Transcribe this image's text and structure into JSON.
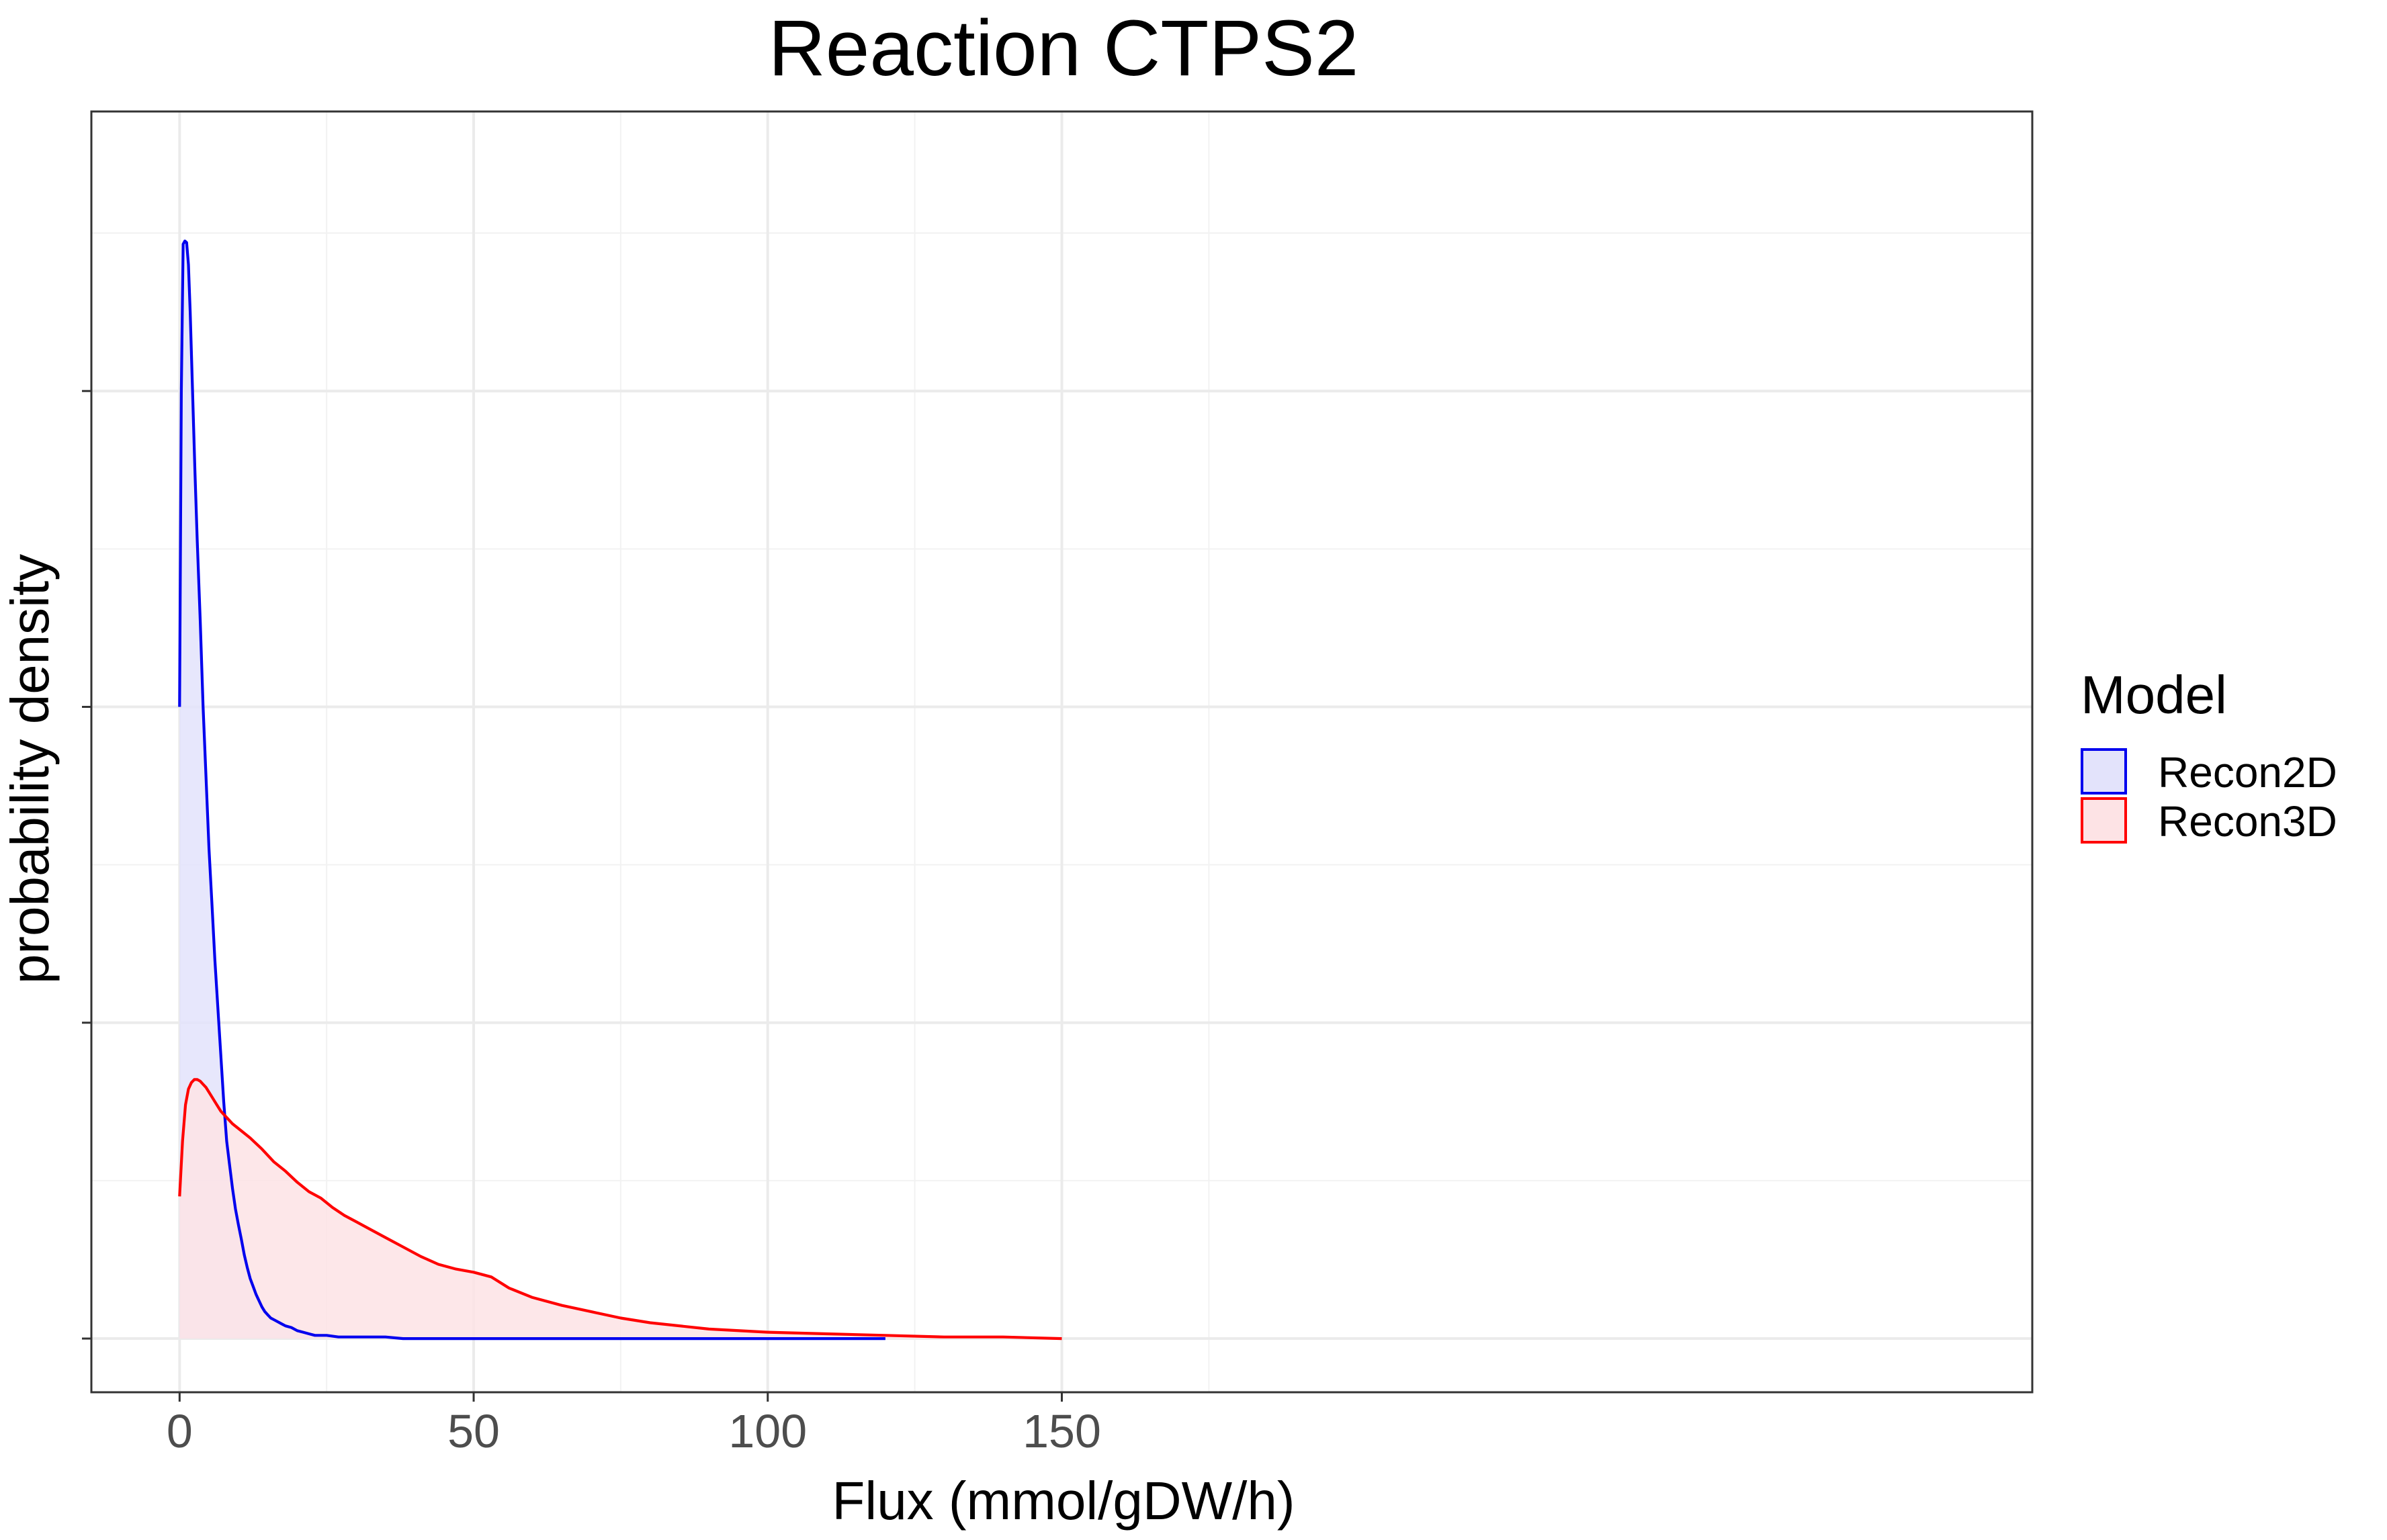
{
  "chart_data": {
    "type": "area",
    "title": "Reaction CTPS2",
    "xlabel": "Flux (mmol/gDW/h)",
    "ylabel": "probability density",
    "xlim": [
      -15,
      315
    ],
    "ylim": [
      -0.0034,
      0.0777
    ],
    "x_ticks": [
      0,
      50,
      100,
      150
    ],
    "x_tick_labels": [
      "0",
      "50",
      "100",
      "150"
    ],
    "y_ticks": [
      0,
      0.02,
      0.04,
      0.06
    ],
    "y_tick_labels": [
      "",
      "",
      "",
      ""
    ],
    "grid": true,
    "legend": {
      "title": "Model",
      "position": "right"
    },
    "series": [
      {
        "name": "Recon2D",
        "color": "#0000ee",
        "fill": "#e3e3fb",
        "x": [
          0,
          0.3,
          0.6,
          0.9,
          1.2,
          1.5,
          1.8,
          2.2,
          2.6,
          3.0,
          3.5,
          4.0,
          4.5,
          5.0,
          5.5,
          6.0,
          6.5,
          7.0,
          7.5,
          8.0,
          8.5,
          9.0,
          9.5,
          10.0,
          10.5,
          11.0,
          11.5,
          12.0,
          12.5,
          13.0,
          13.5,
          14.0,
          14.5,
          15.0,
          15.5,
          16.0,
          16.5,
          17.0,
          17.5,
          18.0,
          19.0,
          20.0,
          21.0,
          22.0,
          23.0,
          24.0,
          25.0,
          27.0,
          29.0,
          32.0,
          35.0,
          38.0,
          42.0,
          48.0,
          60.0,
          80.0,
          100.0,
          120.0
        ],
        "y": [
          0.04,
          0.06,
          0.0693,
          0.0695,
          0.0694,
          0.068,
          0.065,
          0.06,
          0.055,
          0.0505,
          0.0455,
          0.04,
          0.0355,
          0.031,
          0.0275,
          0.024,
          0.021,
          0.018,
          0.015,
          0.0125,
          0.011,
          0.0095,
          0.0082,
          0.0072,
          0.0063,
          0.0053,
          0.0045,
          0.0038,
          0.0033,
          0.0028,
          0.0024,
          0.002,
          0.0017,
          0.0015,
          0.0013,
          0.0012,
          0.0011,
          0.001,
          0.0009,
          0.0008,
          0.0007,
          0.0005,
          0.0004,
          0.0003,
          0.0002,
          0.0002,
          0.0002,
          0.0001,
          0.0001,
          0.0001,
          0.0001,
          0.0,
          0.0,
          0.0,
          0.0,
          0.0,
          0.0,
          0.0
        ]
      },
      {
        "name": "Recon3D",
        "color": "#ff0000",
        "fill": "#fde3e5",
        "x": [
          0,
          0.5,
          1.0,
          1.5,
          2.0,
          2.5,
          3.0,
          3.5,
          4.0,
          4.5,
          5.0,
          5.5,
          6.0,
          7.0,
          8.0,
          9.0,
          10.0,
          12.0,
          14.0,
          16.0,
          18.0,
          20.0,
          22.0,
          24.0,
          26.0,
          28.0,
          30.0,
          32.0,
          35.0,
          38.0,
          41.0,
          44.0,
          47.0,
          50.0,
          53.0,
          56.0,
          60.0,
          65.0,
          70.0,
          75.0,
          80.0,
          90.0,
          100.0,
          110.0,
          120.0,
          130.0,
          140.0,
          150.0
        ],
        "y": [
          0.009,
          0.0125,
          0.0148,
          0.0158,
          0.0162,
          0.0164,
          0.0164,
          0.0163,
          0.0161,
          0.0159,
          0.0156,
          0.0153,
          0.015,
          0.0144,
          0.014,
          0.0136,
          0.0133,
          0.0127,
          0.012,
          0.0112,
          0.0106,
          0.0099,
          0.0093,
          0.0089,
          0.0083,
          0.0078,
          0.0074,
          0.007,
          0.0064,
          0.0058,
          0.0052,
          0.0047,
          0.0044,
          0.0042,
          0.0039,
          0.0032,
          0.0026,
          0.0021,
          0.0017,
          0.0013,
          0.001,
          0.0006,
          0.0004,
          0.0003,
          0.0002,
          0.0001,
          0.0001,
          0.0
        ]
      }
    ]
  }
}
